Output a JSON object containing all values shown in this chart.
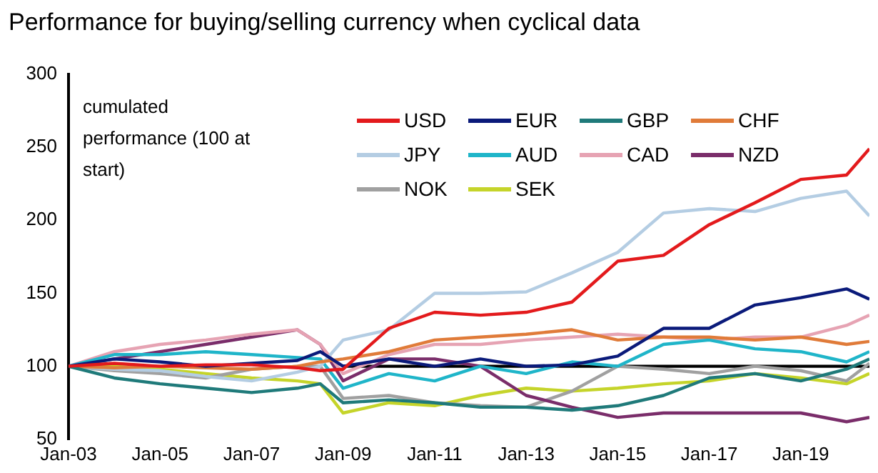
{
  "chart_data": {
    "type": "line",
    "title": "Performance for buying/selling currency when cyclical data",
    "ylabel": "cumulated performance (100 at start)",
    "x": [
      "2003-01",
      "2004-01",
      "2005-01",
      "2006-01",
      "2007-01",
      "2008-01",
      "2008-07",
      "2009-01",
      "2010-01",
      "2011-01",
      "2012-01",
      "2013-01",
      "2014-01",
      "2015-01",
      "2016-01",
      "2017-01",
      "2018-01",
      "2019-01",
      "2020-01",
      "2020-07"
    ],
    "series": [
      {
        "name": "USD",
        "color": "#e31a1c",
        "values": [
          100,
          102,
          100,
          101,
          101,
          99,
          97,
          98,
          126,
          137,
          135,
          137,
          144,
          172,
          176,
          197,
          212,
          228,
          231,
          249
        ]
      },
      {
        "name": "EUR",
        "color": "#0a1a7a",
        "values": [
          100,
          105,
          103,
          100,
          102,
          104,
          110,
          100,
          105,
          100,
          105,
          100,
          101,
          107,
          126,
          126,
          142,
          147,
          153,
          146
        ]
      },
      {
        "name": "GBP",
        "color": "#1f7a7a",
        "values": [
          100,
          92,
          88,
          85,
          82,
          85,
          88,
          75,
          77,
          75,
          72,
          72,
          70,
          73,
          80,
          92,
          95,
          90,
          98,
          105
        ]
      },
      {
        "name": "CHF",
        "color": "#e07b39",
        "values": [
          100,
          99,
          100,
          99,
          98,
          100,
          103,
          105,
          110,
          118,
          120,
          122,
          125,
          118,
          120,
          120,
          118,
          120,
          115,
          117
        ]
      },
      {
        "name": "JPY",
        "color": "#b4cde3",
        "values": [
          100,
          98,
          97,
          93,
          90,
          96,
          100,
          118,
          125,
          150,
          150,
          151,
          164,
          178,
          205,
          208,
          206,
          215,
          220,
          203
        ]
      },
      {
        "name": "AUD",
        "color": "#1fb5c9",
        "values": [
          100,
          108,
          108,
          110,
          108,
          106,
          105,
          85,
          95,
          90,
          100,
          95,
          103,
          100,
          115,
          118,
          112,
          110,
          103,
          110
        ]
      },
      {
        "name": "CAD",
        "color": "#e6a3b3",
        "values": [
          100,
          110,
          115,
          118,
          122,
          125,
          115,
          95,
          108,
          115,
          115,
          118,
          120,
          122,
          120,
          118,
          120,
          120,
          128,
          135
        ]
      },
      {
        "name": "NZD",
        "color": "#7a2d6a",
        "values": [
          100,
          105,
          110,
          115,
          120,
          125,
          115,
          90,
          105,
          105,
          100,
          80,
          72,
          65,
          68,
          68,
          68,
          68,
          62,
          65
        ]
      },
      {
        "name": "NOK",
        "color": "#a0a0a0",
        "values": [
          100,
          97,
          95,
          92,
          98,
          100,
          100,
          78,
          80,
          75,
          73,
          72,
          83,
          100,
          98,
          95,
          100,
          97,
          90,
          102
        ]
      },
      {
        "name": "SEK",
        "color": "#c5d42a",
        "values": [
          100,
          100,
          98,
          95,
          92,
          90,
          88,
          68,
          75,
          73,
          80,
          85,
          83,
          85,
          88,
          90,
          95,
          92,
          88,
          95
        ]
      },
      {
        "color": "#000000",
        "x": [
          "2009-01",
          "2020-07"
        ],
        "values": [
          100,
          100
        ]
      }
    ],
    "xlim": [
      "2003-01",
      "2020-07"
    ],
    "xticks": [
      {
        "value": "2003-01",
        "label": "Jan-03"
      },
      {
        "value": "2005-01",
        "label": "Jan-05"
      },
      {
        "value": "2007-01",
        "label": "Jan-07"
      },
      {
        "value": "2009-01",
        "label": "Jan-09"
      },
      {
        "value": "2011-01",
        "label": "Jan-11"
      },
      {
        "value": "2013-01",
        "label": "Jan-13"
      },
      {
        "value": "2015-01",
        "label": "Jan-15"
      },
      {
        "value": "2017-01",
        "label": "Jan-17"
      },
      {
        "value": "2019-01",
        "label": "Jan-19"
      }
    ],
    "ylim": [
      50,
      300
    ],
    "yticks": [
      50,
      100,
      150,
      200,
      250,
      300
    ],
    "grid": false,
    "legend": "top",
    "marker": "none",
    "line_style": "solid"
  }
}
